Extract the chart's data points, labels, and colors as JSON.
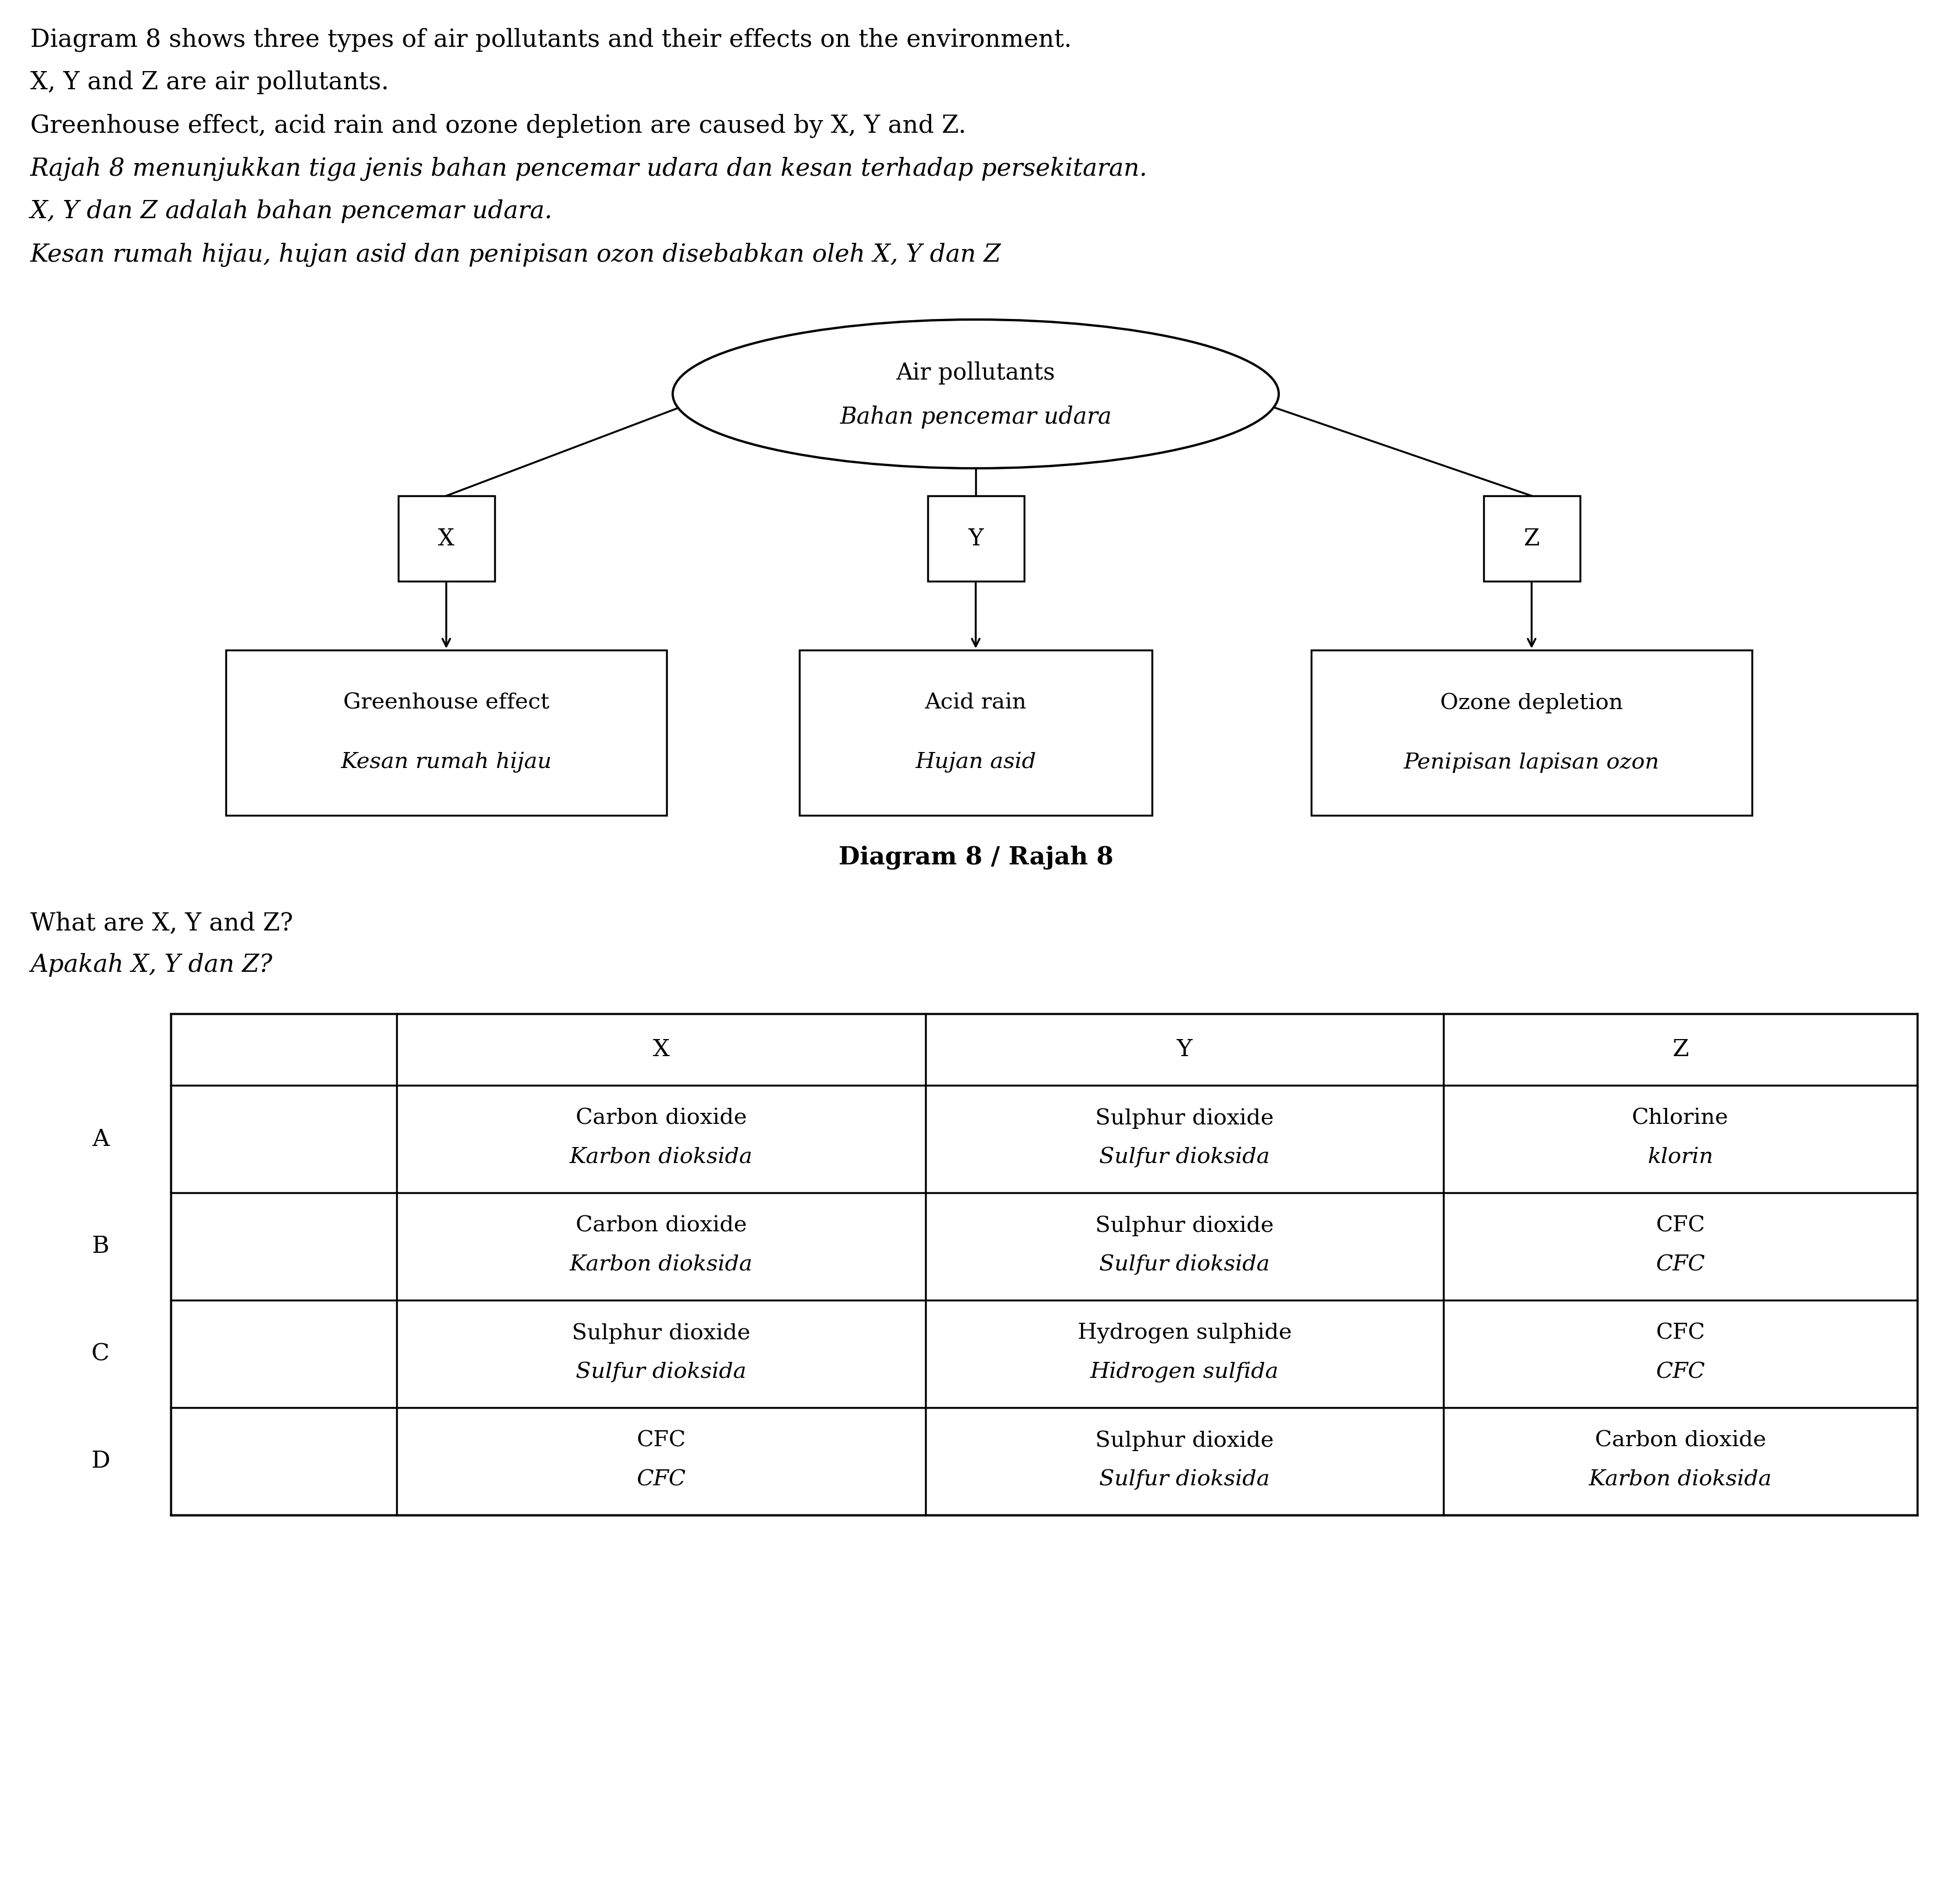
{
  "bg_color": "#ffffff",
  "text_color": "#000000",
  "intro_lines": [
    "Diagram 8 shows three types of air pollutants and their effects on the environment.",
    "X, Y and Z are air pollutants.",
    "Greenhouse effect, acid rain and ozone depletion are caused by X, Y and Z.",
    "Rajah 8 menunjukkan tiga jenis bahan pencemar udara dan kesan terhadap persekitaran.",
    "X, Y dan Z adalah bahan pencemar udara.",
    "Kesan rumah hijau, hujan asid dan penipisan ozon disebabkan oleh X, Y dan Z"
  ],
  "intro_italic": [
    false,
    false,
    false,
    true,
    true,
    true
  ],
  "ellipse_label1": "Air pollutants",
  "ellipse_label2": "Bahan pencemar udara",
  "node_labels": [
    "X",
    "Y",
    "Z"
  ],
  "effect_labels": [
    [
      "Greenhouse effect",
      "Kesan rumah hijau"
    ],
    [
      "Acid rain",
      "Hujan asid"
    ],
    [
      "Ozone depletion",
      "Penipisan lapisan ozon"
    ]
  ],
  "diagram_caption": "Diagram 8 / Rajah 8",
  "question_line1": "What are X, Y and Z?",
  "question_line2": "Apakah X, Y dan Z?",
  "table_headers": [
    "",
    "X",
    "Y",
    "Z"
  ],
  "table_rows": [
    {
      "label": "A",
      "data": [
        [
          "Carbon dioxide",
          "Karbon dioksida"
        ],
        [
          "Sulphur dioxide",
          "Sulfur dioksida"
        ],
        [
          "Chlorine",
          "klorin"
        ]
      ]
    },
    {
      "label": "B",
      "data": [
        [
          "Carbon dioxide",
          "Karbon dioksida"
        ],
        [
          "Sulphur dioxide",
          "Sulfur dioksida"
        ],
        [
          "CFC",
          "CFC"
        ]
      ]
    },
    {
      "label": "C",
      "data": [
        [
          "Sulphur dioxide",
          "Sulfur dioksida"
        ],
        [
          "Hydrogen sulphide",
          "Hidrogen sulfida"
        ],
        [
          "CFC",
          "CFC"
        ]
      ]
    },
    {
      "label": "D",
      "data": [
        [
          "CFC",
          "CFC"
        ],
        [
          "Sulphur dioxide",
          "Sulfur dioksida"
        ],
        [
          "Carbon dioxide",
          "Karbon dioksida"
        ]
      ]
    }
  ]
}
